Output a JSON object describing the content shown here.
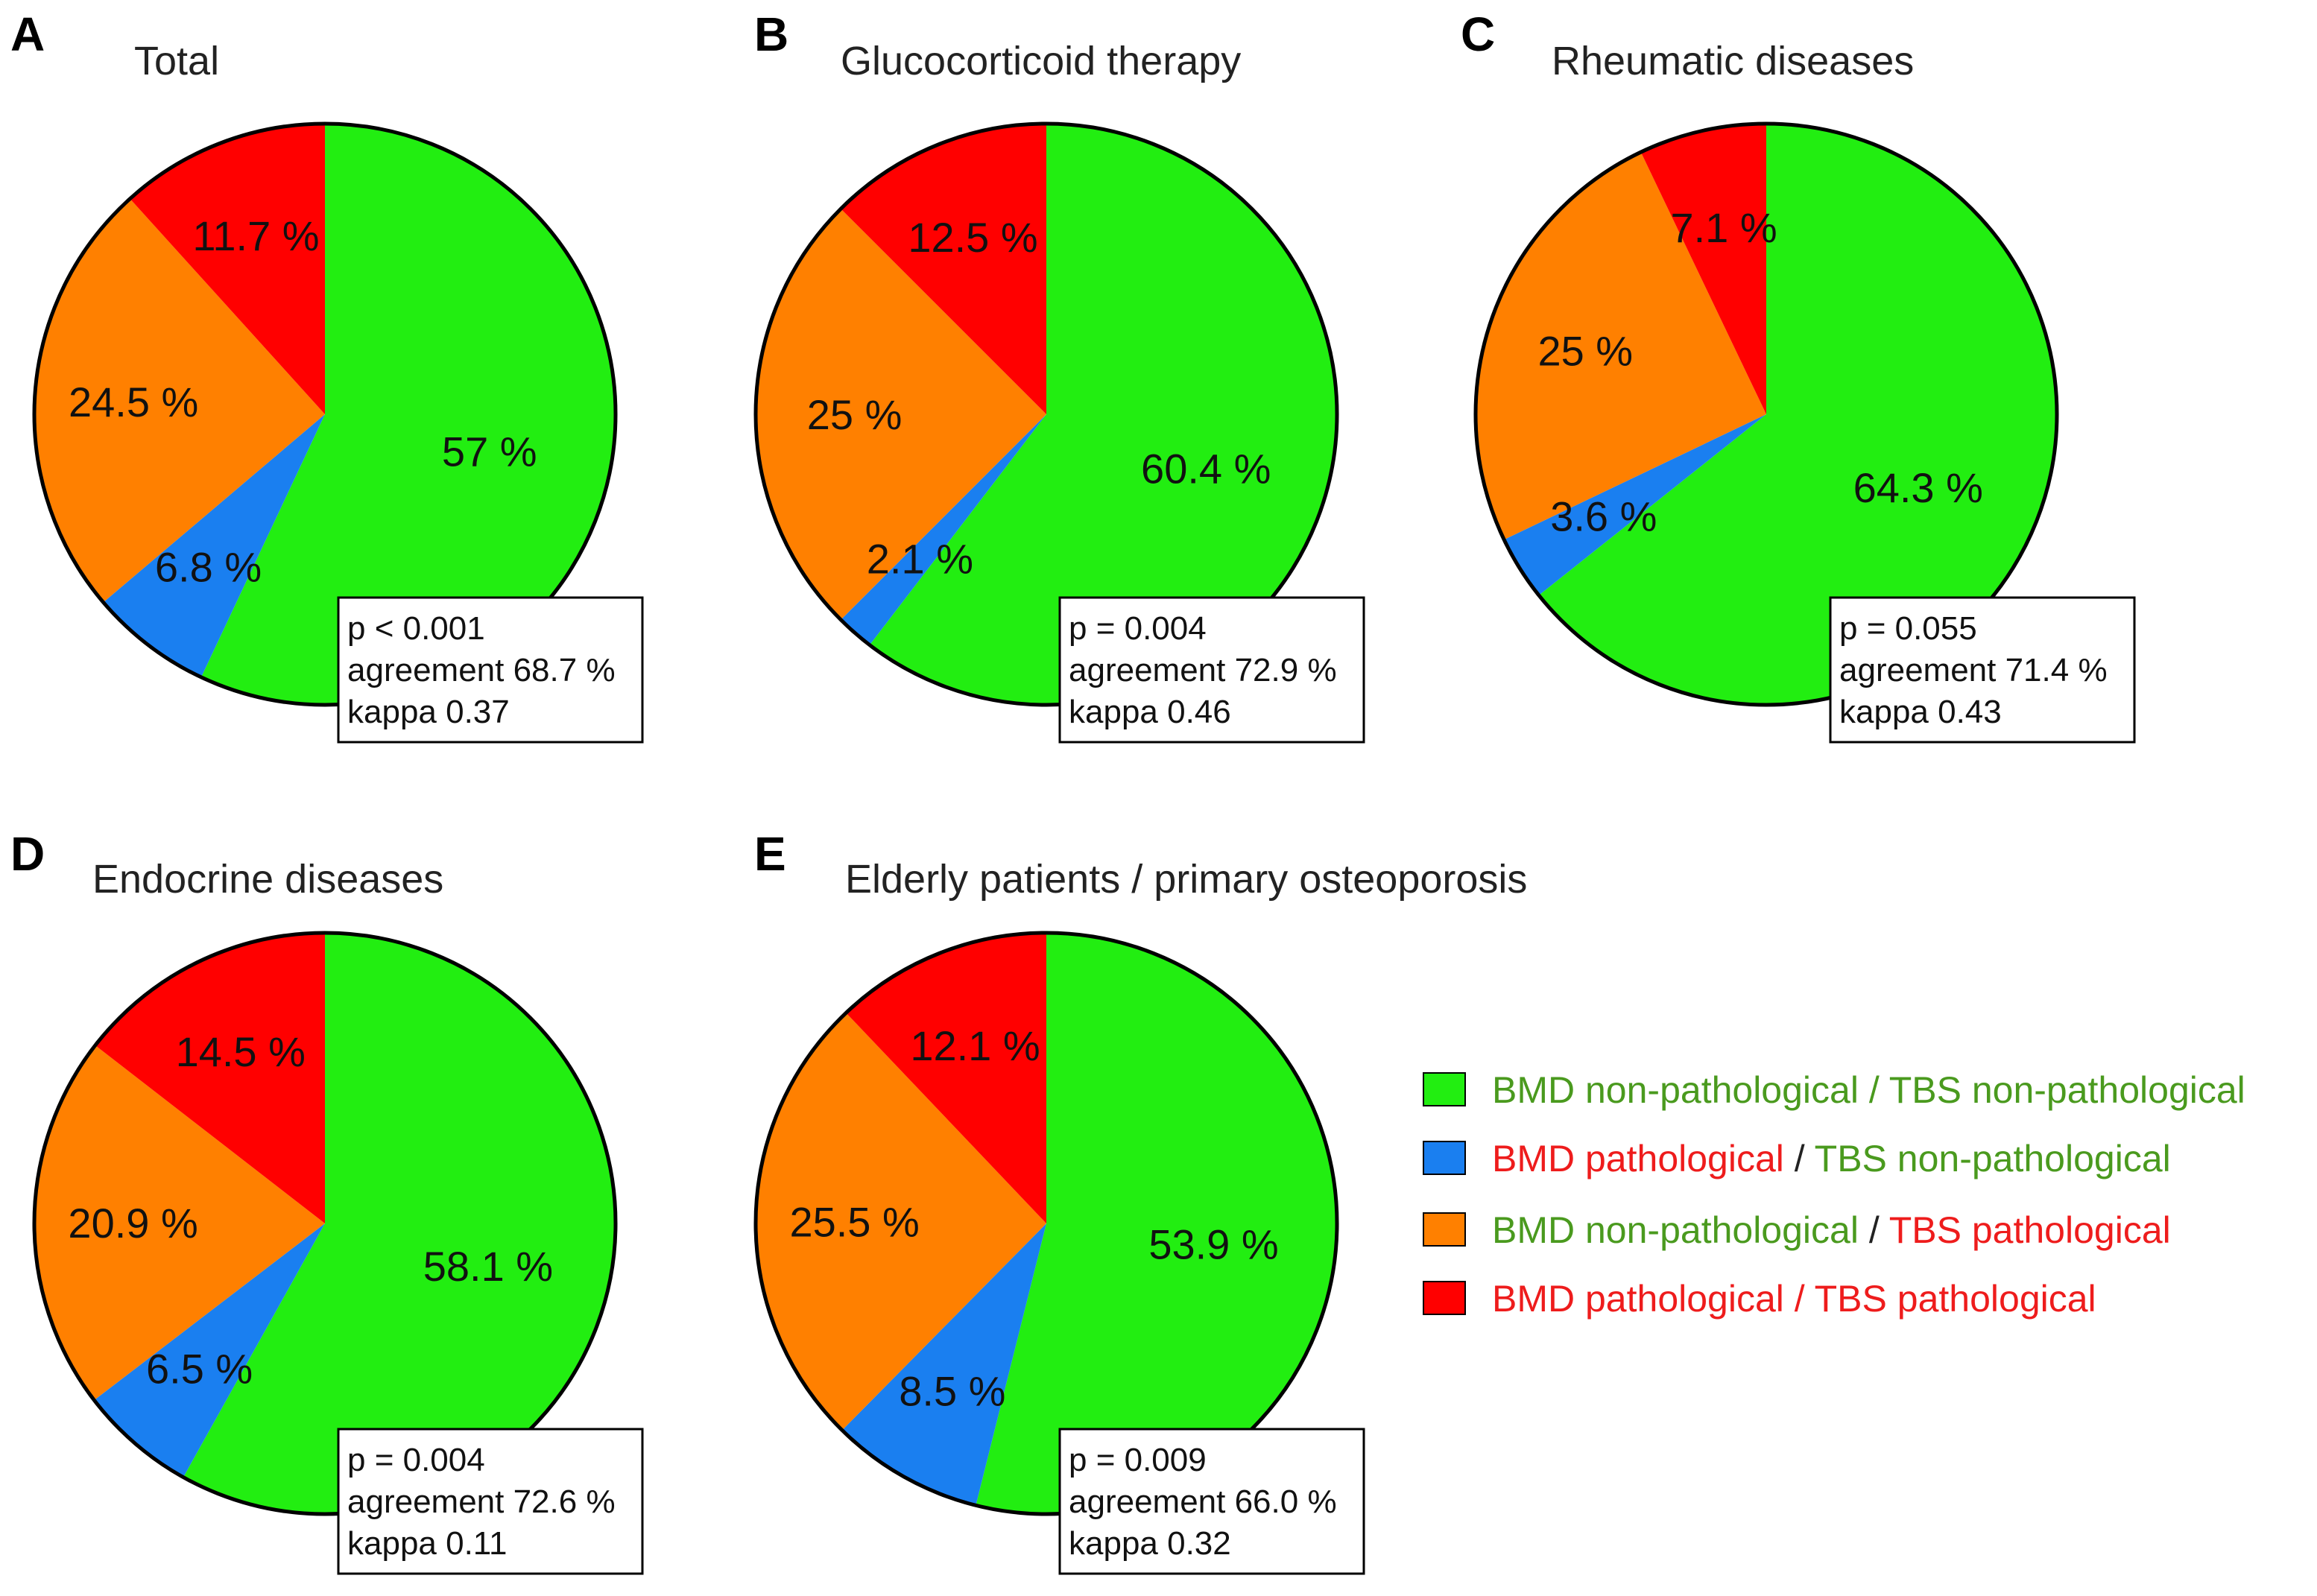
{
  "chart_data": [
    {
      "type": "pie",
      "letter": "A",
      "title": "Total",
      "slices": [
        {
          "category": "BMD non-pathological / TBS non-pathological",
          "value": 57,
          "label": "57 %",
          "color": "#22ee11"
        },
        {
          "category": "BMD pathological / TBS non-pathological",
          "value": 6.8,
          "label": "6.8 %",
          "color": "#1a7ff0"
        },
        {
          "category": "BMD non-pathological / TBS pathological",
          "value": 24.5,
          "label": "24.5 %",
          "color": "#ff8000"
        },
        {
          "category": "BMD pathological / TBS pathological",
          "value": 11.7,
          "label": "11.7 %",
          "color": "#ff0000"
        }
      ],
      "stats": [
        "p < 0.001",
        "agreement 68.7 %",
        "kappa 0.37"
      ]
    },
    {
      "type": "pie",
      "letter": "B",
      "title": "Glucocorticoid therapy",
      "slices": [
        {
          "category": "BMD non-pathological / TBS non-pathological",
          "value": 60.4,
          "label": "60.4 %",
          "color": "#22ee11"
        },
        {
          "category": "BMD pathological / TBS non-pathological",
          "value": 2.1,
          "label": "2.1 %",
          "color": "#1a7ff0"
        },
        {
          "category": "BMD non-pathological / TBS pathological",
          "value": 25,
          "label": "25 %",
          "color": "#ff8000"
        },
        {
          "category": "BMD pathological / TBS pathological",
          "value": 12.5,
          "label": "12.5 %",
          "color": "#ff0000"
        }
      ],
      "stats": [
        "p = 0.004",
        "agreement 72.9 %",
        "kappa 0.46"
      ]
    },
    {
      "type": "pie",
      "letter": "C",
      "title": "Rheumatic diseases",
      "slices": [
        {
          "category": "BMD non-pathological / TBS non-pathological",
          "value": 64.3,
          "label": "64.3 %",
          "color": "#22ee11"
        },
        {
          "category": "BMD pathological / TBS non-pathological",
          "value": 3.6,
          "label": "3.6 %",
          "color": "#1a7ff0"
        },
        {
          "category": "BMD non-pathological / TBS pathological",
          "value": 25,
          "label": "25 %",
          "color": "#ff8000"
        },
        {
          "category": "BMD pathological / TBS pathological",
          "value": 7.1,
          "label": "7.1 %",
          "color": "#ff0000"
        }
      ],
      "stats": [
        "p = 0.055",
        "agreement 71.4 %",
        "kappa 0.43"
      ]
    },
    {
      "type": "pie",
      "letter": "D",
      "title": "Endocrine diseases",
      "slices": [
        {
          "category": "BMD non-pathological / TBS non-pathological",
          "value": 58.1,
          "label": "58.1 %",
          "color": "#22ee11"
        },
        {
          "category": "BMD pathological / TBS non-pathological",
          "value": 6.5,
          "label": "6.5 %",
          "color": "#1a7ff0"
        },
        {
          "category": "BMD non-pathological / TBS pathological",
          "value": 20.9,
          "label": "20.9 %",
          "color": "#ff8000"
        },
        {
          "category": "BMD pathological / TBS pathological",
          "value": 14.5,
          "label": "14.5 %",
          "color": "#ff0000"
        }
      ],
      "stats": [
        "p = 0.004",
        "agreement 72.6 %",
        "kappa 0.11"
      ]
    },
    {
      "type": "pie",
      "letter": "E",
      "title": "Elderly patients / primary osteoporosis",
      "slices": [
        {
          "category": "BMD non-pathological / TBS non-pathological",
          "value": 53.9,
          "label": "53.9 %",
          "color": "#22ee11"
        },
        {
          "category": "BMD pathological / TBS non-pathological",
          "value": 8.5,
          "label": "8.5 %",
          "color": "#1a7ff0"
        },
        {
          "category": "BMD non-pathological / TBS pathological",
          "value": 25.5,
          "label": "25.5 %",
          "color": "#ff8000"
        },
        {
          "category": "BMD pathological / TBS pathological",
          "value": 12.1,
          "label": "12.1 %",
          "color": "#ff0000"
        }
      ],
      "stats": [
        "p = 0.009",
        "agreement 66.0 %",
        "kappa 0.32"
      ]
    }
  ],
  "legend": {
    "items": [
      {
        "color": "#22ee11",
        "parts": [
          {
            "text": "BMD non-pathological / TBS non-pathological",
            "color": "#4a9a1e"
          }
        ]
      },
      {
        "color": "#1a7ff0",
        "parts": [
          {
            "text": "BMD pathological",
            "color": "#ee1c1c"
          },
          {
            "text": " / ",
            "color": "#222222"
          },
          {
            "text": "TBS non-pathological",
            "color": "#4a9a1e"
          }
        ]
      },
      {
        "color": "#ff8000",
        "parts": [
          {
            "text": "BMD non-pathological",
            "color": "#4a9a1e"
          },
          {
            "text": " / ",
            "color": "#222222"
          },
          {
            "text": "TBS pathological",
            "color": "#ee1c1c"
          }
        ]
      },
      {
        "color": "#ff0000",
        "parts": [
          {
            "text": "BMD pathological / TBS pathological",
            "color": "#ee1c1c"
          }
        ]
      }
    ]
  }
}
